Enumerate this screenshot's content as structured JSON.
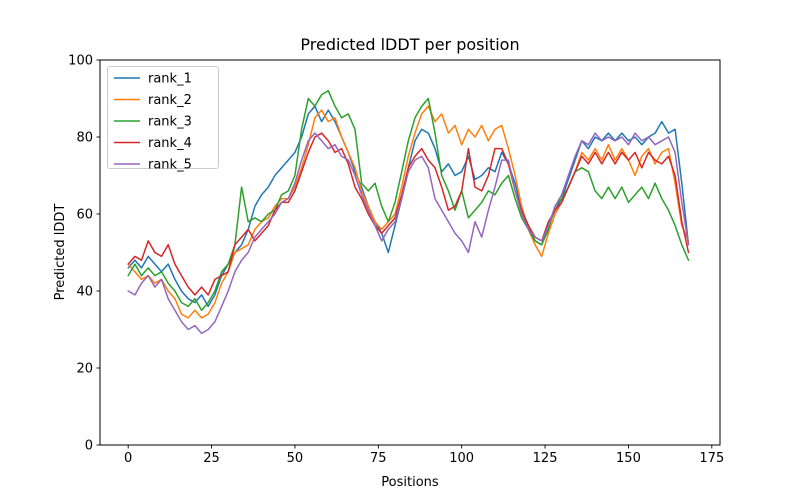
{
  "figure": {
    "background": "#ffffff"
  },
  "chart_data": {
    "type": "line",
    "title": "Predicted lDDT per position",
    "xlabel": "Positions",
    "ylabel": "Predicted lDDT",
    "xlim": [
      -8.45,
      177.45
    ],
    "ylim": [
      0,
      100
    ],
    "xticks": [
      0,
      25,
      50,
      75,
      100,
      125,
      150,
      175
    ],
    "yticks": [
      0,
      20,
      40,
      60,
      80,
      100
    ],
    "grid": false,
    "legend_position": "upper left",
    "axis_color": "#000000",
    "legend_border_color": "#cccccc",
    "x": [
      0,
      2,
      4,
      6,
      8,
      10,
      12,
      14,
      16,
      18,
      20,
      22,
      24,
      26,
      28,
      30,
      32,
      34,
      36,
      38,
      40,
      42,
      44,
      46,
      48,
      50,
      52,
      54,
      56,
      58,
      60,
      62,
      64,
      66,
      68,
      70,
      72,
      74,
      76,
      78,
      80,
      82,
      84,
      86,
      88,
      90,
      92,
      94,
      96,
      98,
      100,
      102,
      104,
      106,
      108,
      110,
      112,
      114,
      116,
      118,
      120,
      122,
      124,
      126,
      128,
      130,
      132,
      134,
      136,
      138,
      140,
      142,
      144,
      146,
      148,
      150,
      152,
      154,
      156,
      158,
      160,
      162,
      164,
      166,
      168
    ],
    "series": [
      {
        "name": "rank_1",
        "color": "#1f77b4",
        "values": [
          46,
          48,
          46,
          49,
          47,
          45,
          47,
          43,
          40,
          38,
          37,
          39,
          36,
          39,
          44,
          47,
          50,
          52,
          56,
          62,
          65,
          67,
          70,
          72,
          74,
          76,
          80,
          86,
          88,
          84,
          87,
          84,
          80,
          76,
          71,
          67,
          62,
          58,
          55,
          50,
          57,
          64,
          72,
          79,
          82,
          81,
          77,
          71,
          73,
          70,
          71,
          75,
          69,
          70,
          72,
          71,
          76,
          73,
          68,
          61,
          57,
          53,
          52,
          57,
          61,
          64,
          69,
          74,
          79,
          77,
          80,
          79,
          81,
          79,
          81,
          79,
          80,
          78,
          80,
          81,
          84,
          81,
          82,
          68,
          52
        ]
      },
      {
        "name": "rank_2",
        "color": "#ff7f0e",
        "values": [
          47,
          45,
          43,
          44,
          42,
          43,
          40,
          38,
          34,
          33,
          35,
          33,
          34,
          37,
          42,
          45,
          50,
          51,
          52,
          56,
          58,
          59,
          62,
          64,
          64,
          67,
          72,
          78,
          85,
          87,
          84,
          85,
          80,
          76,
          72,
          66,
          62,
          58,
          56,
          58,
          60,
          67,
          75,
          81,
          86,
          88,
          84,
          86,
          81,
          83,
          78,
          82,
          80,
          83,
          79,
          82,
          83,
          77,
          70,
          62,
          56,
          52,
          49,
          55,
          60,
          63,
          67,
          71,
          76,
          74,
          77,
          74,
          78,
          74,
          77,
          74,
          70,
          75,
          77,
          73,
          76,
          77,
          68,
          57,
          53
        ]
      },
      {
        "name": "rank_3",
        "color": "#2ca02c",
        "values": [
          44,
          47,
          44,
          46,
          44,
          45,
          42,
          40,
          37,
          36,
          38,
          35,
          37,
          40,
          45,
          47,
          52,
          67,
          58,
          59,
          58,
          60,
          61,
          65,
          66,
          70,
          82,
          90,
          88,
          91,
          92,
          88,
          85,
          86,
          82,
          68,
          66,
          68,
          62,
          58,
          63,
          71,
          79,
          85,
          88,
          90,
          81,
          70,
          66,
          61,
          66,
          59,
          61,
          63,
          66,
          65,
          68,
          70,
          64,
          59,
          56,
          53,
          52,
          56,
          62,
          64,
          67,
          71,
          72,
          71,
          66,
          64,
          67,
          64,
          67,
          63,
          65,
          67,
          64,
          68,
          64,
          61,
          57,
          52,
          48
        ]
      },
      {
        "name": "rank_4",
        "color": "#d62728",
        "values": [
          47,
          49,
          48,
          53,
          50,
          49,
          52,
          47,
          44,
          41,
          39,
          41,
          39,
          43,
          44,
          45,
          52,
          54,
          56,
          53,
          55,
          57,
          61,
          63,
          63,
          66,
          71,
          76,
          80,
          81,
          79,
          76,
          77,
          73,
          67,
          64,
          60,
          57,
          55,
          57,
          59,
          65,
          72,
          75,
          77,
          74,
          72,
          67,
          61,
          62,
          66,
          77,
          67,
          66,
          70,
          77,
          77,
          73,
          66,
          61,
          57,
          54,
          53,
          58,
          61,
          63,
          67,
          71,
          75,
          73,
          76,
          73,
          76,
          73,
          76,
          74,
          76,
          72,
          76,
          74,
          73,
          75,
          70,
          58,
          50
        ]
      },
      {
        "name": "rank_5",
        "color": "#9467bd",
        "values": [
          40,
          39,
          42,
          44,
          41,
          43,
          38,
          35,
          32,
          30,
          31,
          29,
          30,
          32,
          36,
          40,
          45,
          48,
          50,
          54,
          56,
          58,
          60,
          63,
          64,
          68,
          74,
          79,
          81,
          79,
          77,
          78,
          75,
          74,
          70,
          65,
          61,
          57,
          53,
          56,
          58,
          64,
          71,
          74,
          75,
          72,
          64,
          61,
          58,
          55,
          53,
          50,
          58,
          54,
          61,
          67,
          74,
          74,
          66,
          60,
          56,
          54,
          53,
          57,
          62,
          65,
          70,
          75,
          79,
          78,
          81,
          79,
          80,
          79,
          80,
          78,
          81,
          79,
          80,
          78,
          79,
          80,
          76,
          63,
          52
        ]
      }
    ]
  }
}
